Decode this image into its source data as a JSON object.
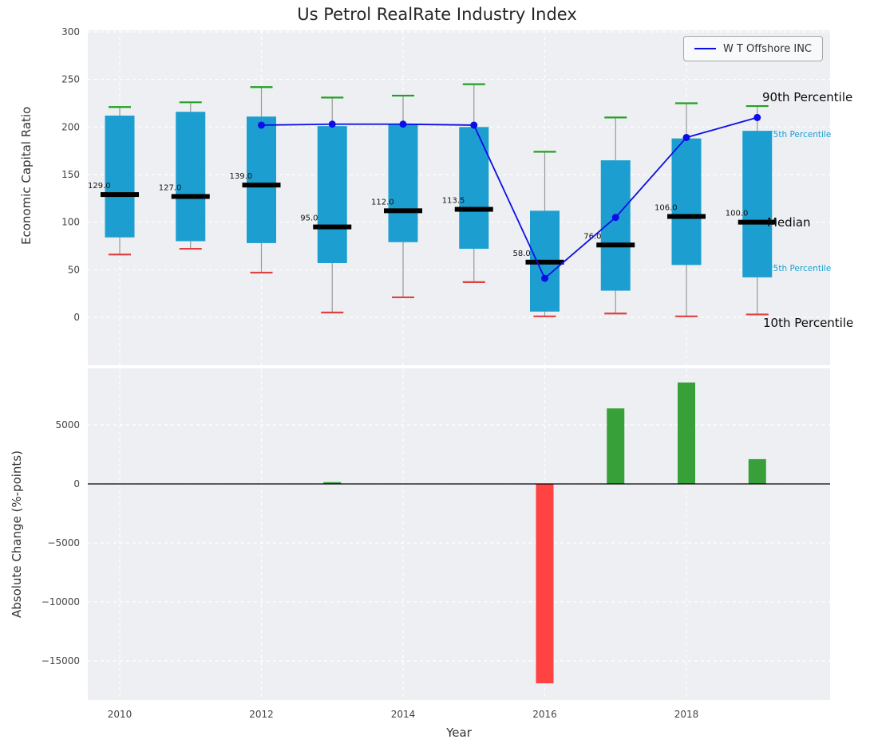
{
  "chart_data": {
    "type": "boxplot+line+bar",
    "title": "Us Petrol RealRate Industry Index",
    "top_panel": {
      "ylabel": "Economic Capital Ratio",
      "yticks": [
        300,
        250,
        200,
        150,
        100,
        50,
        0
      ],
      "ylim": [
        -55,
        305
      ],
      "grid": "on",
      "years": [
        2010,
        2011,
        2012,
        2013,
        2014,
        2015,
        2016,
        2017,
        2018,
        2019
      ],
      "p90": [
        221,
        226,
        242,
        231,
        233,
        245,
        174,
        210,
        225,
        222
      ],
      "p75": [
        212,
        216,
        211,
        201,
        203,
        200,
        112,
        165,
        188,
        196
      ],
      "median": [
        129,
        127,
        139,
        95,
        112,
        113.5,
        58,
        76,
        106,
        100
      ],
      "median_labels": [
        "129.0",
        "127.0",
        "139.0",
        "95.0",
        "112.0",
        "113.5",
        "58.0",
        "76.0",
        "106.0",
        "100.0"
      ],
      "p25": [
        84,
        80,
        78,
        57,
        79,
        72,
        6,
        28,
        55,
        42
      ],
      "p10": [
        66,
        72,
        47,
        5,
        21,
        37,
        1,
        4,
        1,
        3
      ],
      "series": {
        "name": "W T Offshore INC",
        "x": [
          2012,
          2013,
          2014,
          2015,
          2016,
          2017,
          2018,
          2019
        ],
        "y": [
          202,
          203,
          203,
          202,
          41,
          105,
          189,
          210
        ]
      },
      "annotations": {
        "p90": "90th Percentile",
        "p75": "75th Percentile",
        "median": "Median",
        "p25": "25th Percentile",
        "p10": "10th Percentile"
      },
      "legend_position": "upper right"
    },
    "bottom_panel": {
      "ylabel": "Absolute Change (%-points)",
      "xlabel": "Year",
      "yticks": [
        5000,
        0,
        -5000,
        -10000,
        -15000
      ],
      "ytick_labels": [
        "5000",
        "0",
        "−5000",
        "−10000",
        "−15000"
      ],
      "xticks": [
        2010,
        2012,
        2014,
        2016,
        2018
      ],
      "xtick_labels": [
        "2010",
        "2012",
        "2014",
        "2016",
        "2018"
      ],
      "bars": {
        "years": [
          2013,
          2016,
          2017,
          2018,
          2019
        ],
        "values": [
          150,
          -16900,
          6400,
          8600,
          2100
        ]
      }
    },
    "colors": {
      "box": "#1c9fd0",
      "whisker": "#999999",
      "cap_high": "#22a022",
      "cap_low": "#e04040",
      "median": "#000000",
      "company_line": "#0d0de8",
      "bar_positive": "#38a038",
      "bar_negative": "#ff4242",
      "panel_bg": "#edeff2",
      "grid": "#ffffff"
    }
  }
}
